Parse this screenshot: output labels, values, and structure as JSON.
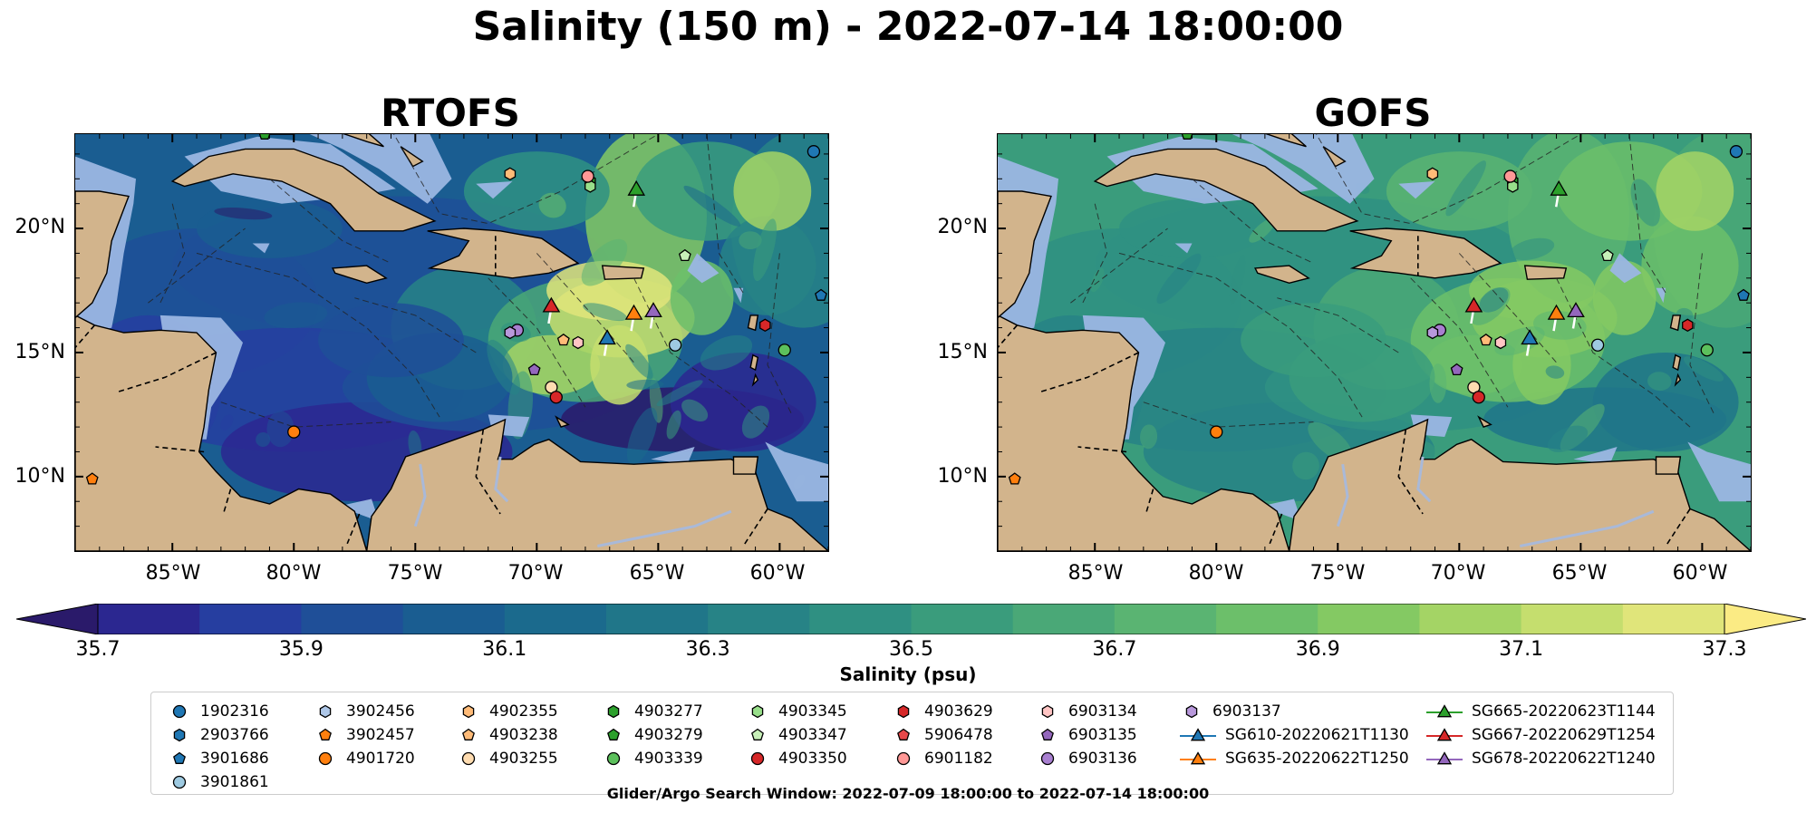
{
  "figure": {
    "title": "Salinity (150 m) - 2022-07-14 18:00:00",
    "panels": [
      {
        "name": "RTOFS",
        "model": "rtofs"
      },
      {
        "name": "GOFS",
        "model": "gofs"
      }
    ],
    "map_extent": {
      "lon": [
        -89,
        -58
      ],
      "lat": [
        7,
        23.8
      ]
    },
    "lat_ticks": [
      "20°N",
      "15°N",
      "10°N"
    ],
    "lon_ticks": [
      "85°W",
      "80°W",
      "75°W",
      "70°W",
      "65°W",
      "60°W"
    ],
    "colorbar": {
      "label": "Salinity (psu)",
      "range": [
        35.7,
        37.3
      ],
      "step": 0.1,
      "extend": "both",
      "tick_labels": [
        "35.7",
        "35.9",
        "36.1",
        "36.3",
        "36.5",
        "36.7",
        "36.9",
        "37.1",
        "37.3"
      ],
      "colors": [
        "#2a1a6a",
        "#2b2790",
        "#263ea0",
        "#1f4f98",
        "#1a5d91",
        "#1b6a8d",
        "#207689",
        "#278386",
        "#2f9082",
        "#3a9c7c",
        "#4aa877",
        "#5ab472",
        "#6cbf6a",
        "#84c963",
        "#a4d465",
        "#c5de6e",
        "#e0e57a"
      ]
    },
    "colors": {
      "land": "#d2b48c",
      "shallow": "#9bb6e3"
    },
    "legend": [
      {
        "label": "1902316",
        "shape": "circle",
        "color": "#1f77b4"
      },
      {
        "label": "2903766",
        "shape": "hexagon",
        "color": "#1f77b4"
      },
      {
        "label": "3901686",
        "shape": "pentagon",
        "color": "#1f77b4"
      },
      {
        "label": "3901861",
        "shape": "circle",
        "color": "#9ecae1"
      },
      {
        "label": "3902456",
        "shape": "hexagon",
        "color": "#aec7e8"
      },
      {
        "label": "3902457",
        "shape": "pentagon",
        "color": "#ff7f0e"
      },
      {
        "label": "4901720",
        "shape": "circle",
        "color": "#ff7f0e"
      },
      {
        "label": "4902355",
        "shape": "hexagon",
        "color": "#ffbb78"
      },
      {
        "label": "4903238",
        "shape": "pentagon",
        "color": "#ffbb78"
      },
      {
        "label": "4903255",
        "shape": "circle",
        "color": "#ffdcb0"
      },
      {
        "label": "4903277",
        "shape": "hexagon",
        "color": "#2ca02c"
      },
      {
        "label": "4903279",
        "shape": "pentagon",
        "color": "#2ca02c"
      },
      {
        "label": "4903339",
        "shape": "circle",
        "color": "#5cc05c"
      },
      {
        "label": "4903345",
        "shape": "hexagon",
        "color": "#98df8a"
      },
      {
        "label": "4903347",
        "shape": "pentagon",
        "color": "#c7f0b8"
      },
      {
        "label": "4903350",
        "shape": "circle",
        "color": "#d62728"
      },
      {
        "label": "4903629",
        "shape": "hexagon",
        "color": "#d62728"
      },
      {
        "label": "5906478",
        "shape": "pentagon",
        "color": "#e8484a"
      },
      {
        "label": "6901182",
        "shape": "circle",
        "color": "#ff9896"
      },
      {
        "label": "6903134",
        "shape": "hexagon",
        "color": "#ffc5c4"
      },
      {
        "label": "6903135",
        "shape": "pentagon",
        "color": "#9467bd"
      },
      {
        "label": "6903136",
        "shape": "circle",
        "color": "#a87fd0"
      },
      {
        "label": "6903137",
        "shape": "hexagon",
        "color": "#b898db"
      },
      {
        "label": "SG610-20220621T1130",
        "shape": "triangle-line",
        "color": "#1f77b4"
      },
      {
        "label": "SG635-20220622T1250",
        "shape": "triangle-line",
        "color": "#ff7f0e"
      },
      {
        "label": "SG665-20220623T1144",
        "shape": "triangle-line",
        "color": "#2ca02c"
      },
      {
        "label": "SG667-20220629T1254",
        "shape": "triangle-line",
        "color": "#d62728"
      },
      {
        "label": "SG678-20220622T1240",
        "shape": "triangle-line",
        "color": "#9467bd"
      }
    ],
    "markers": [
      {
        "id": "1902316",
        "lon": -58.6,
        "lat": 23.1
      },
      {
        "id": "3901686",
        "lon": -58.3,
        "lat": 17.3
      },
      {
        "id": "3901861",
        "lon": -64.3,
        "lat": 15.3
      },
      {
        "id": "3902457",
        "lon": -88.3,
        "lat": 9.9
      },
      {
        "id": "4901720",
        "lon": -80.0,
        "lat": 11.8
      },
      {
        "id": "4902355",
        "lon": -71.1,
        "lat": 22.2
      },
      {
        "id": "4903238",
        "lon": -68.9,
        "lat": 15.5
      },
      {
        "id": "4903255",
        "lon": -69.4,
        "lat": 13.6
      },
      {
        "id": "4903277",
        "lon": -67.8,
        "lat": 21.9
      },
      {
        "id": "4903279",
        "lon": -81.2,
        "lat": 23.8
      },
      {
        "id": "4903339",
        "lon": -59.8,
        "lat": 15.1
      },
      {
        "id": "4903345",
        "lon": -67.8,
        "lat": 21.7
      },
      {
        "id": "4903347",
        "lon": -63.9,
        "lat": 18.9
      },
      {
        "id": "4903350",
        "lon": -69.2,
        "lat": 13.2
      },
      {
        "id": "4903629",
        "lon": -60.6,
        "lat": 16.1
      },
      {
        "id": "6901182",
        "lon": -67.9,
        "lat": 22.1
      },
      {
        "id": "6903134",
        "lon": -68.3,
        "lat": 15.4
      },
      {
        "id": "6903135",
        "lon": -70.1,
        "lat": 14.3
      },
      {
        "id": "6903136",
        "lon": -70.8,
        "lat": 15.9
      },
      {
        "id": "6903137",
        "lon": -71.1,
        "lat": 15.8
      },
      {
        "id": "SG610-20220621T1130",
        "lon": -67.1,
        "lat": 15.6
      },
      {
        "id": "SG635-20220622T1250",
        "lon": -66.0,
        "lat": 16.6
      },
      {
        "id": "SG665-20220623T1144",
        "lon": -65.9,
        "lat": 21.6
      },
      {
        "id": "SG667-20220629T1254",
        "lon": -69.4,
        "lat": 16.9
      },
      {
        "id": "SG678-20220622T1240",
        "lon": -65.2,
        "lat": 16.7
      }
    ],
    "footer": "Glider/Argo Search Window: 2022-07-09 18:00:00 to 2022-07-14 18:00:00"
  }
}
